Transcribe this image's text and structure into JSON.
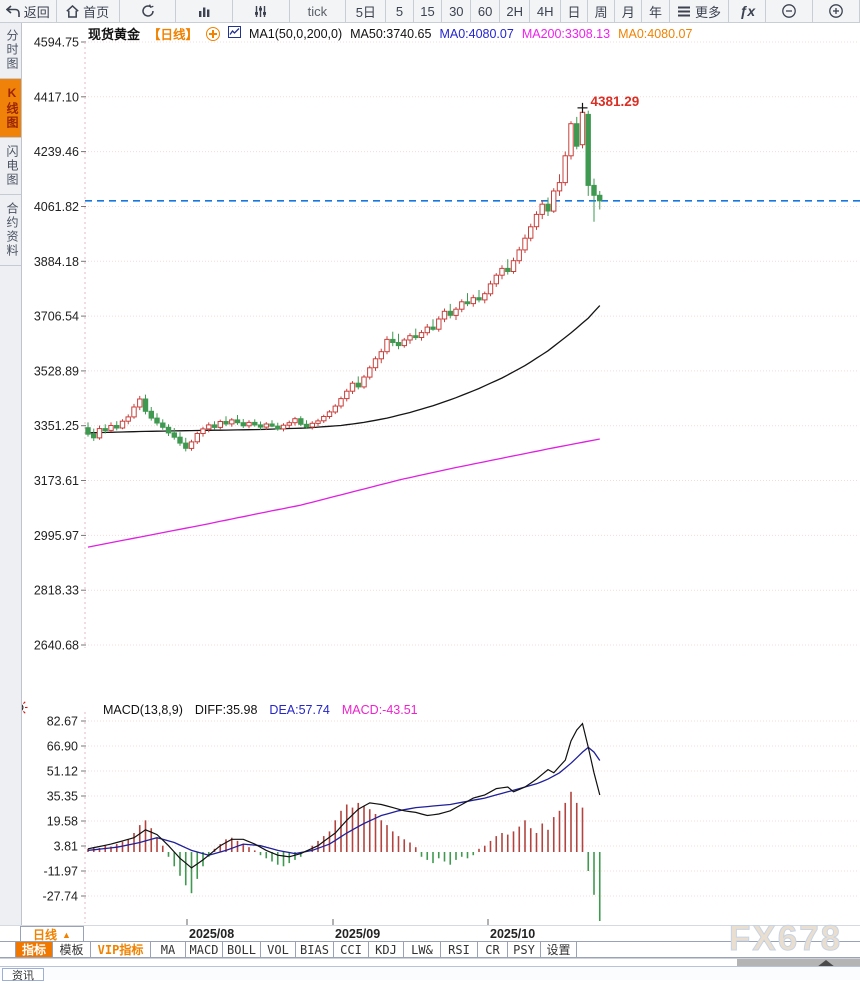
{
  "toolbar": {
    "items": [
      {
        "name": "back",
        "label": "返回",
        "icon": "back-arrow-icon"
      },
      {
        "name": "home",
        "label": "首页",
        "icon": "home-icon"
      },
      {
        "name": "refresh",
        "icon": "refresh-icon"
      },
      {
        "name": "chart-type",
        "icon": "bar-chart-icon"
      },
      {
        "name": "indicator-picker",
        "icon": "sliders-icon"
      },
      {
        "name": "tick",
        "label": "tick"
      },
      {
        "name": "5d",
        "label": "5日"
      },
      {
        "name": "5m",
        "label": "5"
      },
      {
        "name": "15m",
        "label": "15"
      },
      {
        "name": "30m",
        "label": "30"
      },
      {
        "name": "60m",
        "label": "60"
      },
      {
        "name": "2h",
        "label": "2H"
      },
      {
        "name": "4h",
        "label": "4H"
      },
      {
        "name": "day",
        "label": "日"
      },
      {
        "name": "week",
        "label": "周"
      },
      {
        "name": "month",
        "label": "月"
      },
      {
        "name": "year",
        "label": "年"
      },
      {
        "name": "more",
        "label": "更多",
        "icon": "hamburger-icon"
      },
      {
        "name": "fx",
        "label": "ƒx"
      },
      {
        "name": "zoom-out",
        "icon": "zoom-out-icon"
      },
      {
        "name": "zoom-in",
        "icon": "zoom-in-icon"
      }
    ]
  },
  "sidebar": {
    "items": [
      {
        "name": "time-share",
        "label": "分时图",
        "active": false
      },
      {
        "name": "kline",
        "label": "K线图",
        "active": true
      },
      {
        "name": "lightning",
        "label": "闪电图",
        "active": false
      },
      {
        "name": "contract-info",
        "label": "合约资料",
        "active": false
      }
    ]
  },
  "chart_data": {
    "type": "candlestick",
    "main": {
      "header": {
        "symbol": "现货黄金",
        "period": "【日线】",
        "ma_settings": "MA1(50,0,200,0)",
        "ma50": "MA50:3740.65",
        "ma0_blue": "MA0:4080.07",
        "ma200": "MA200:3308.13",
        "ma0_orange": "MA0:4080.07"
      },
      "ylim": [
        2640.68,
        4594.75
      ],
      "y_ticks": [
        4594.75,
        4417.1,
        4239.46,
        4061.82,
        3884.18,
        3706.54,
        3528.89,
        3351.25,
        3173.61,
        2995.97,
        2818.33,
        2640.68
      ],
      "x_labels": [
        "2025/08",
        "2025/09",
        "2025/10"
      ],
      "last_price": 4080.07,
      "annotation": {
        "text": "4381.29",
        "price": 4381.29,
        "candle_index": 86
      },
      "candles": [
        [
          3345,
          3362,
          3316,
          3324
        ],
        [
          3324,
          3342,
          3302,
          3312
        ],
        [
          3312,
          3352,
          3306,
          3342
        ],
        [
          3342,
          3356,
          3326,
          3336
        ],
        [
          3336,
          3362,
          3330,
          3352
        ],
        [
          3352,
          3366,
          3336,
          3344
        ],
        [
          3344,
          3372,
          3340,
          3366
        ],
        [
          3366,
          3388,
          3356,
          3380
        ],
        [
          3380,
          3422,
          3374,
          3412
        ],
        [
          3412,
          3448,
          3402,
          3438
        ],
        [
          3438,
          3452,
          3388,
          3398
        ],
        [
          3398,
          3412,
          3368,
          3376
        ],
        [
          3376,
          3392,
          3352,
          3360
        ],
        [
          3360,
          3372,
          3338,
          3346
        ],
        [
          3346,
          3356,
          3318,
          3328
        ],
        [
          3328,
          3344,
          3306,
          3314
        ],
        [
          3314,
          3330,
          3286,
          3295
        ],
        [
          3295,
          3312,
          3268,
          3278
        ],
        [
          3278,
          3306,
          3270,
          3299
        ],
        [
          3299,
          3332,
          3292,
          3326
        ],
        [
          3326,
          3348,
          3316,
          3341
        ],
        [
          3341,
          3362,
          3330,
          3354
        ],
        [
          3354,
          3366,
          3338,
          3346
        ],
        [
          3346,
          3371,
          3340,
          3365
        ],
        [
          3365,
          3382,
          3350,
          3357
        ],
        [
          3357,
          3376,
          3348,
          3370
        ],
        [
          3370,
          3386,
          3354,
          3361
        ],
        [
          3361,
          3373,
          3344,
          3351
        ],
        [
          3351,
          3369,
          3343,
          3362
        ],
        [
          3362,
          3372,
          3348,
          3354
        ],
        [
          3354,
          3365,
          3338,
          3347
        ],
        [
          3347,
          3363,
          3337,
          3357
        ],
        [
          3357,
          3369,
          3346,
          3350
        ],
        [
          3350,
          3361,
          3335,
          3341
        ],
        [
          3341,
          3359,
          3333,
          3353
        ],
        [
          3353,
          3368,
          3344,
          3361
        ],
        [
          3361,
          3380,
          3352,
          3374
        ],
        [
          3374,
          3382,
          3350,
          3356
        ],
        [
          3356,
          3369,
          3341,
          3347
        ],
        [
          3347,
          3366,
          3339,
          3359
        ],
        [
          3359,
          3374,
          3350,
          3367
        ],
        [
          3367,
          3387,
          3360,
          3381
        ],
        [
          3381,
          3402,
          3374,
          3396
        ],
        [
          3396,
          3421,
          3389,
          3415
        ],
        [
          3415,
          3446,
          3407,
          3439
        ],
        [
          3439,
          3471,
          3430,
          3463
        ],
        [
          3463,
          3496,
          3454,
          3489
        ],
        [
          3489,
          3511,
          3469,
          3477
        ],
        [
          3477,
          3516,
          3471,
          3509
        ],
        [
          3509,
          3546,
          3501,
          3539
        ],
        [
          3539,
          3576,
          3529,
          3568
        ],
        [
          3568,
          3601,
          3554,
          3591
        ],
        [
          3591,
          3641,
          3583,
          3631
        ],
        [
          3631,
          3656,
          3609,
          3621
        ],
        [
          3621,
          3649,
          3599,
          3611
        ],
        [
          3611,
          3636,
          3604,
          3629
        ],
        [
          3629,
          3651,
          3617,
          3643
        ],
        [
          3643,
          3666,
          3629,
          3637
        ],
        [
          3637,
          3661,
          3627,
          3653
        ],
        [
          3653,
          3681,
          3644,
          3671
        ],
        [
          3671,
          3696,
          3659,
          3664
        ],
        [
          3664,
          3706,
          3656,
          3697
        ],
        [
          3697,
          3731,
          3687,
          3722
        ],
        [
          3722,
          3746,
          3699,
          3709
        ],
        [
          3709,
          3736,
          3694,
          3729
        ],
        [
          3729,
          3761,
          3719,
          3753
        ],
        [
          3753,
          3781,
          3739,
          3747
        ],
        [
          3747,
          3776,
          3737,
          3766
        ],
        [
          3766,
          3791,
          3751,
          3759
        ],
        [
          3759,
          3786,
          3748,
          3779
        ],
        [
          3779,
          3821,
          3771,
          3811
        ],
        [
          3811,
          3846,
          3801,
          3839
        ],
        [
          3839,
          3871,
          3826,
          3861
        ],
        [
          3861,
          3891,
          3841,
          3851
        ],
        [
          3851,
          3896,
          3844,
          3886
        ],
        [
          3886,
          3931,
          3876,
          3921
        ],
        [
          3921,
          3971,
          3911,
          3959
        ],
        [
          3959,
          4006,
          3949,
          3996
        ],
        [
          3996,
          4046,
          3986,
          4036
        ],
        [
          4036,
          4081,
          4021,
          4069
        ],
        [
          4069,
          4091,
          4031,
          4047
        ],
        [
          4047,
          4121,
          4041,
          4112
        ],
        [
          4112,
          4166,
          4096,
          4139
        ],
        [
          4139,
          4240,
          4129,
          4226
        ],
        [
          4226,
          4338,
          4214,
          4330
        ],
        [
          4330,
          4352,
          4247,
          4257
        ],
        [
          4262,
          4381.29,
          4250,
          4367
        ],
        [
          4360,
          4372,
          4096,
          4130
        ],
        [
          4130,
          4152,
          4012,
          4098
        ],
        [
          4098,
          4112,
          4052,
          4080.07
        ]
      ],
      "ma50_points": [
        [
          0,
          3328
        ],
        [
          10,
          3333
        ],
        [
          20,
          3336
        ],
        [
          30,
          3339
        ],
        [
          38,
          3344
        ],
        [
          44,
          3352
        ],
        [
          48,
          3362
        ],
        [
          52,
          3376
        ],
        [
          56,
          3394
        ],
        [
          60,
          3416
        ],
        [
          64,
          3442
        ],
        [
          68,
          3472
        ],
        [
          72,
          3506
        ],
        [
          76,
          3546
        ],
        [
          80,
          3594
        ],
        [
          84,
          3652
        ],
        [
          87,
          3700
        ],
        [
          89,
          3740.65
        ]
      ],
      "ma200_points": [
        [
          0,
          2958
        ],
        [
          10,
          2994
        ],
        [
          20,
          3030
        ],
        [
          30,
          3068
        ],
        [
          37,
          3094
        ],
        [
          45,
          3132
        ],
        [
          54,
          3175
        ],
        [
          63,
          3212
        ],
        [
          72,
          3246
        ],
        [
          80,
          3276
        ],
        [
          89,
          3308.13
        ]
      ],
      "line_colors": {
        "ma50": "#151515",
        "ma200": "#e020e0",
        "last_price_line": "#1677e0"
      },
      "candle_colors": {
        "up": "#c8403c",
        "down": "#3f9950"
      }
    },
    "macd": {
      "header": {
        "title": "MACD(13,8,9)",
        "diff": "DIFF:35.98",
        "dea": "DEA:57.74",
        "macd": "MACD:-43.51"
      },
      "y_ticks": [
        82.67,
        66.9,
        51.12,
        35.35,
        19.58,
        3.81,
        -11.97,
        -27.74
      ],
      "histogram": [
        2,
        3,
        2.5,
        4,
        3.5,
        5,
        6.5,
        8,
        12,
        17,
        20,
        15,
        9,
        4,
        -3,
        -9,
        -15,
        -21,
        -26,
        -17,
        -9,
        -3,
        2,
        5,
        8,
        9,
        7,
        5,
        3,
        1,
        -2,
        -4,
        -6,
        -8,
        -9,
        -7,
        -5,
        -3,
        1,
        4,
        7,
        10,
        13,
        20,
        26,
        30,
        28,
        31,
        29,
        27,
        24,
        20,
        17,
        13,
        10,
        8,
        6,
        3,
        -3,
        -5,
        -7,
        -4,
        -6,
        -8,
        -5,
        -3,
        -4,
        -2,
        2,
        4,
        7,
        10,
        12,
        11,
        13,
        16,
        20,
        15,
        12,
        18,
        14,
        22,
        26,
        31,
        38,
        31,
        28,
        -12,
        -27,
        -43.51
      ],
      "diff_points": [
        [
          0,
          2
        ],
        [
          4,
          5
        ],
        [
          8,
          9
        ],
        [
          10,
          14
        ],
        [
          12,
          11
        ],
        [
          14,
          4
        ],
        [
          16,
          -4
        ],
        [
          18,
          -10
        ],
        [
          20,
          -5
        ],
        [
          23,
          4
        ],
        [
          25,
          8
        ],
        [
          27,
          8
        ],
        [
          29,
          5
        ],
        [
          31,
          1
        ],
        [
          33,
          -2
        ],
        [
          35,
          -3
        ],
        [
          37,
          -1
        ],
        [
          40,
          4
        ],
        [
          43,
          12
        ],
        [
          45,
          20
        ],
        [
          47,
          27
        ],
        [
          49,
          31
        ],
        [
          51,
          30
        ],
        [
          53,
          28
        ],
        [
          55,
          26
        ],
        [
          57,
          25
        ],
        [
          59,
          23
        ],
        [
          61,
          24
        ],
        [
          63,
          26
        ],
        [
          65,
          30
        ],
        [
          67,
          34
        ],
        [
          69,
          36
        ],
        [
          71,
          40
        ],
        [
          73,
          41
        ],
        [
          74,
          38
        ],
        [
          76,
          41
        ],
        [
          78,
          46
        ],
        [
          80,
          52
        ],
        [
          81,
          50
        ],
        [
          83,
          58
        ],
        [
          84,
          70
        ],
        [
          85,
          77
        ],
        [
          86,
          81
        ],
        [
          87,
          66
        ],
        [
          88,
          50
        ],
        [
          89,
          35.98
        ]
      ],
      "dea_points": [
        [
          0,
          1
        ],
        [
          5,
          3
        ],
        [
          9,
          6
        ],
        [
          12,
          9
        ],
        [
          15,
          6
        ],
        [
          18,
          1
        ],
        [
          21,
          -2
        ],
        [
          24,
          1
        ],
        [
          27,
          5
        ],
        [
          30,
          4
        ],
        [
          33,
          1
        ],
        [
          36,
          -1
        ],
        [
          39,
          1
        ],
        [
          42,
          5
        ],
        [
          45,
          12
        ],
        [
          48,
          18
        ],
        [
          51,
          23
        ],
        [
          54,
          26
        ],
        [
          57,
          28
        ],
        [
          60,
          29
        ],
        [
          63,
          30
        ],
        [
          66,
          32
        ],
        [
          69,
          34
        ],
        [
          72,
          37
        ],
        [
          75,
          40
        ],
        [
          78,
          43
        ],
        [
          80,
          46
        ],
        [
          82,
          50
        ],
        [
          84,
          56
        ],
        [
          86,
          63
        ],
        [
          87,
          66
        ],
        [
          88,
          63
        ],
        [
          89,
          57.74
        ]
      ],
      "line_colors": {
        "diff": "#101010",
        "dea": "#20209a"
      },
      "bar_colors": {
        "positive": "#b2443f",
        "negative": "#3f9950"
      }
    }
  },
  "bottom": {
    "period_label": "日线",
    "period_arrow": "▲",
    "tabs": [
      {
        "label": "指标",
        "active": true
      },
      {
        "label": "模板"
      },
      {
        "label": "VIP指标",
        "accent": true
      },
      {
        "label": "MA"
      },
      {
        "label": "MACD"
      },
      {
        "label": "BOLL"
      },
      {
        "label": "VOL"
      },
      {
        "label": "BIAS"
      },
      {
        "label": "CCI"
      },
      {
        "label": "KDJ"
      },
      {
        "label": "LW&"
      },
      {
        "label": "RSI"
      },
      {
        "label": "CR"
      },
      {
        "label": "PSY"
      },
      {
        "label": "设置"
      }
    ],
    "news_label": "资讯"
  },
  "watermark": {
    "text": "FX678"
  }
}
